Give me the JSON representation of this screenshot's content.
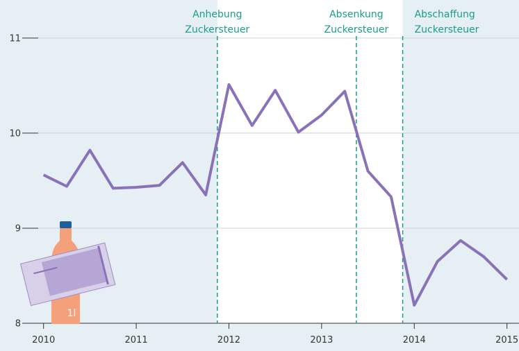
{
  "chart_data": {
    "type": "line",
    "x": [
      2010,
      2010.25,
      2010.5,
      2010.75,
      2011,
      2011.25,
      2011.5,
      2011.75,
      2012,
      2012.25,
      2012.5,
      2012.75,
      2013,
      2013.25,
      2013.5,
      2013.75,
      2014,
      2014.25,
      2014.5,
      2014.75,
      2015
    ],
    "series": [
      {
        "color": "#8a72b8",
        "values": [
          9.56,
          9.44,
          9.82,
          9.42,
          9.43,
          9.45,
          9.69,
          9.35,
          10.51,
          10.08,
          10.45,
          10.01,
          10.19,
          10.44,
          9.6,
          9.33,
          8.19,
          8.65,
          8.87,
          8.7,
          8.46
        ]
      }
    ],
    "xlim": [
      2009.53,
      2015.13
    ],
    "xticks": [
      2010,
      2011,
      2012,
      2013,
      2014,
      2015
    ],
    "ylim": [
      8,
      11.4
    ],
    "yticks": [
      8,
      9,
      10,
      11
    ],
    "grid": true,
    "highlight": [
      2011.875,
      2013.875
    ],
    "annotations": [
      {
        "x": 2011.875,
        "text": [
          "Anhebung",
          "Zuckersteuer"
        ]
      },
      {
        "x": 2013.375,
        "text": [
          "Absenkung",
          "Zuckersteuer"
        ]
      },
      {
        "x": 2013.875,
        "text": [
          "Abschaffung",
          "Zuckersteuer"
        ]
      }
    ],
    "bottle_label": "1l"
  }
}
